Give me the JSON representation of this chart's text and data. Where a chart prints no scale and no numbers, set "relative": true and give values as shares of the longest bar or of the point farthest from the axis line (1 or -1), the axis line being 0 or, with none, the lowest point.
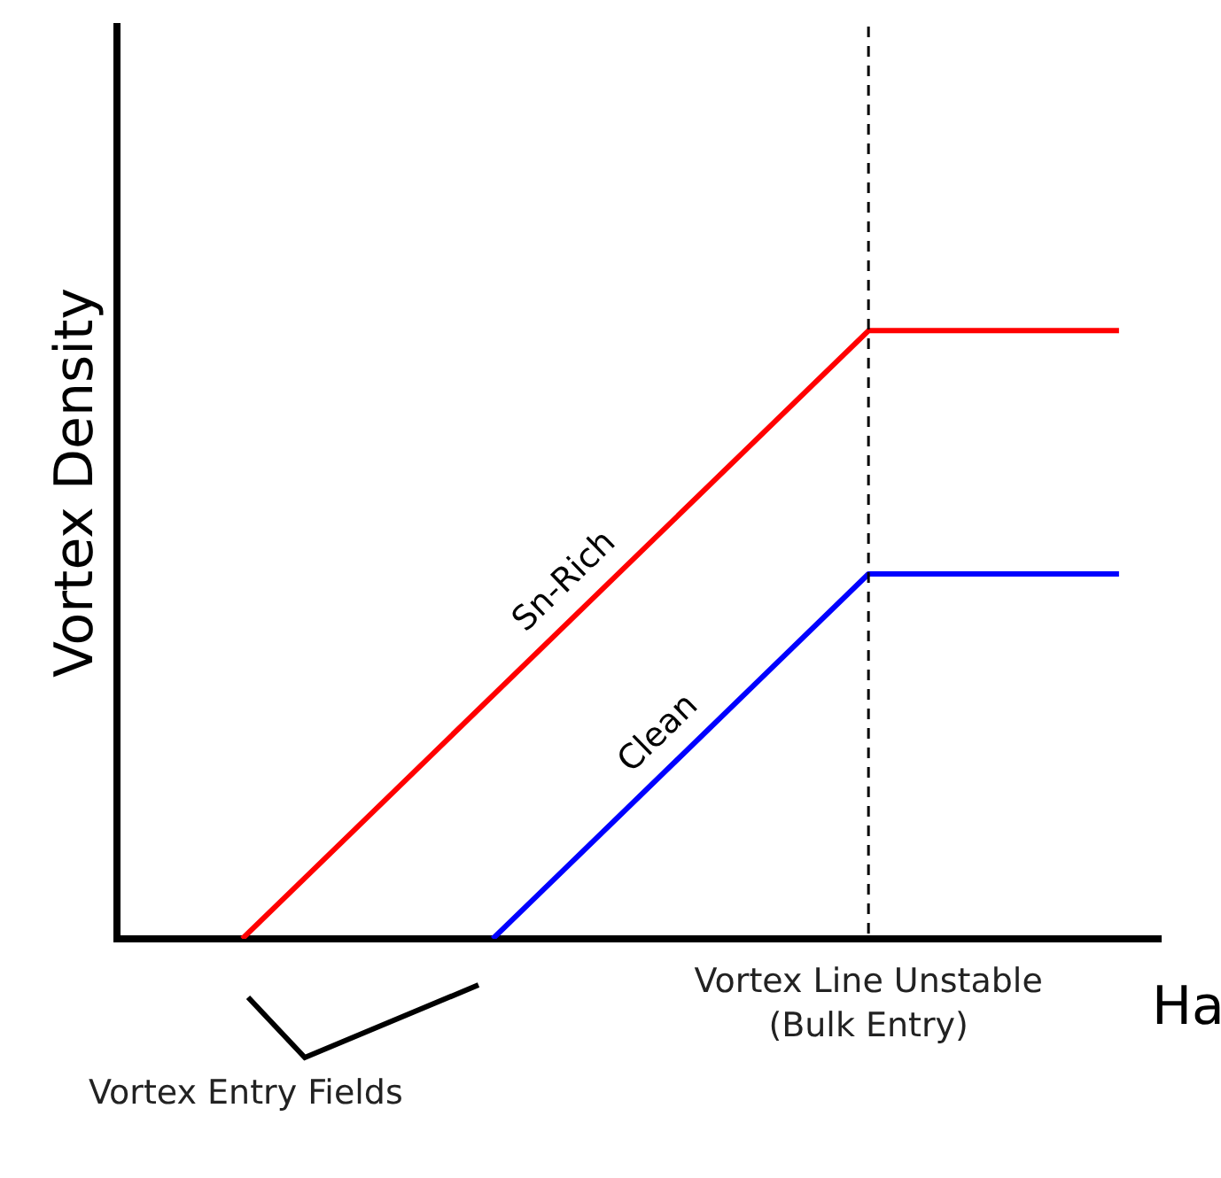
{
  "chart_data": {
    "type": "line",
    "relative": true,
    "ylabel": "Vortex Density",
    "xlabel": "Ha",
    "categories": [
      null,
      null,
      null,
      null,
      null,
      null,
      null,
      null,
      null,
      null,
      null,
      null,
      null,
      null,
      null,
      null,
      null,
      null,
      null,
      null,
      null,
      null,
      null,
      null,
      null,
      null
    ],
    "series": [
      {
        "name": "Sn-Rich",
        "color": "#ff0000",
        "values": [
          null,
          null,
          null,
          0,
          null,
          null,
          null,
          null,
          null,
          null,
          null,
          null,
          null,
          null,
          null,
          null,
          null,
          null,
          1,
          null,
          null,
          null,
          null,
          null,
          1,
          null
        ]
      },
      {
        "name": "Clean",
        "color": "#0000ff",
        "values": [
          null,
          null,
          null,
          null,
          null,
          null,
          null,
          null,
          null,
          0,
          null,
          null,
          null,
          null,
          null,
          null,
          null,
          null,
          0.6,
          null,
          null,
          null,
          null,
          null,
          0.6,
          null
        ]
      }
    ],
    "ref_lines": [
      {
        "axis": "x",
        "label": "Vortex Line Unstable (Bulk Entry)",
        "color": "#000000",
        "line_style": "dashed"
      }
    ],
    "annotations": [
      "Vortex Entry Fields"
    ],
    "legend": false,
    "grid": false,
    "marker": "none",
    "line_style": "solid"
  }
}
